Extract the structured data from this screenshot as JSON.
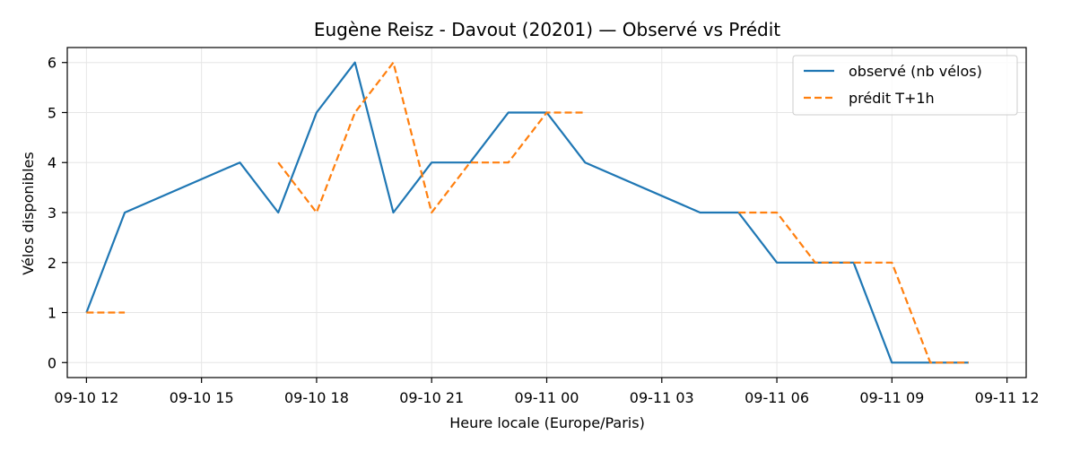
{
  "chart_data": {
    "type": "line",
    "title": "Eugène Reisz - Davout (20201) — Observé vs Prédit",
    "xlabel": "Heure locale (Europe/Paris)",
    "ylabel": "Vélos disponibles",
    "x_unit": "datetime",
    "xlim": [
      "2025-09-10 11:30",
      "2025-09-11 12:30"
    ],
    "ylim": [
      -0.3,
      6.3
    ],
    "x_ticks": [
      {
        "t": "2025-09-10 12:00",
        "label": "09-10 12"
      },
      {
        "t": "2025-09-10 15:00",
        "label": "09-10 15"
      },
      {
        "t": "2025-09-10 18:00",
        "label": "09-10 18"
      },
      {
        "t": "2025-09-10 21:00",
        "label": "09-10 21"
      },
      {
        "t": "2025-09-11 00:00",
        "label": "09-11 00"
      },
      {
        "t": "2025-09-11 03:00",
        "label": "09-11 03"
      },
      {
        "t": "2025-09-11 06:00",
        "label": "09-11 06"
      },
      {
        "t": "2025-09-11 09:00",
        "label": "09-11 09"
      },
      {
        "t": "2025-09-11 12:00",
        "label": "09-11 12"
      }
    ],
    "y_ticks": [
      0,
      1,
      2,
      3,
      4,
      5,
      6
    ],
    "grid": true,
    "legend_position": "top-right",
    "series": [
      {
        "name": "observé (nb vélos)",
        "color": "#1f77b4",
        "style": "solid",
        "points": [
          [
            "2025-09-10 12:00",
            1
          ],
          [
            "2025-09-10 13:00",
            3
          ],
          [
            "2025-09-10 16:00",
            4
          ],
          [
            "2025-09-10 17:00",
            3
          ],
          [
            "2025-09-10 18:00",
            5
          ],
          [
            "2025-09-10 19:00",
            6
          ],
          [
            "2025-09-10 20:00",
            3
          ],
          [
            "2025-09-10 21:00",
            4
          ],
          [
            "2025-09-10 22:00",
            4
          ],
          [
            "2025-09-10 23:00",
            5
          ],
          [
            "2025-09-11 00:00",
            5
          ],
          [
            "2025-09-11 01:00",
            4
          ],
          [
            "2025-09-11 04:00",
            3
          ],
          [
            "2025-09-11 05:00",
            3
          ],
          [
            "2025-09-11 06:00",
            2
          ],
          [
            "2025-09-11 07:00",
            2
          ],
          [
            "2025-09-11 08:00",
            2
          ],
          [
            "2025-09-11 09:00",
            0
          ],
          [
            "2025-09-11 10:00",
            0
          ],
          [
            "2025-09-11 11:00",
            0
          ]
        ]
      },
      {
        "name": "prédit T+1h",
        "color": "#ff7f0e",
        "style": "dashed",
        "segments": [
          [
            [
              "2025-09-10 12:00",
              1
            ],
            [
              "2025-09-10 13:00",
              1
            ]
          ],
          [
            [
              "2025-09-10 17:00",
              4
            ],
            [
              "2025-09-10 18:00",
              3
            ],
            [
              "2025-09-10 19:00",
              5
            ],
            [
              "2025-09-10 20:00",
              6
            ],
            [
              "2025-09-10 21:00",
              3
            ],
            [
              "2025-09-10 22:00",
              4
            ],
            [
              "2025-09-10 23:00",
              4
            ],
            [
              "2025-09-11 00:00",
              5
            ],
            [
              "2025-09-11 01:00",
              5
            ]
          ],
          [
            [
              "2025-09-11 05:00",
              3
            ],
            [
              "2025-09-11 06:00",
              3
            ],
            [
              "2025-09-11 07:00",
              2
            ],
            [
              "2025-09-11 08:00",
              2
            ],
            [
              "2025-09-11 09:00",
              2
            ],
            [
              "2025-09-11 10:00",
              0
            ],
            [
              "2025-09-11 11:00",
              0
            ]
          ]
        ]
      }
    ]
  }
}
